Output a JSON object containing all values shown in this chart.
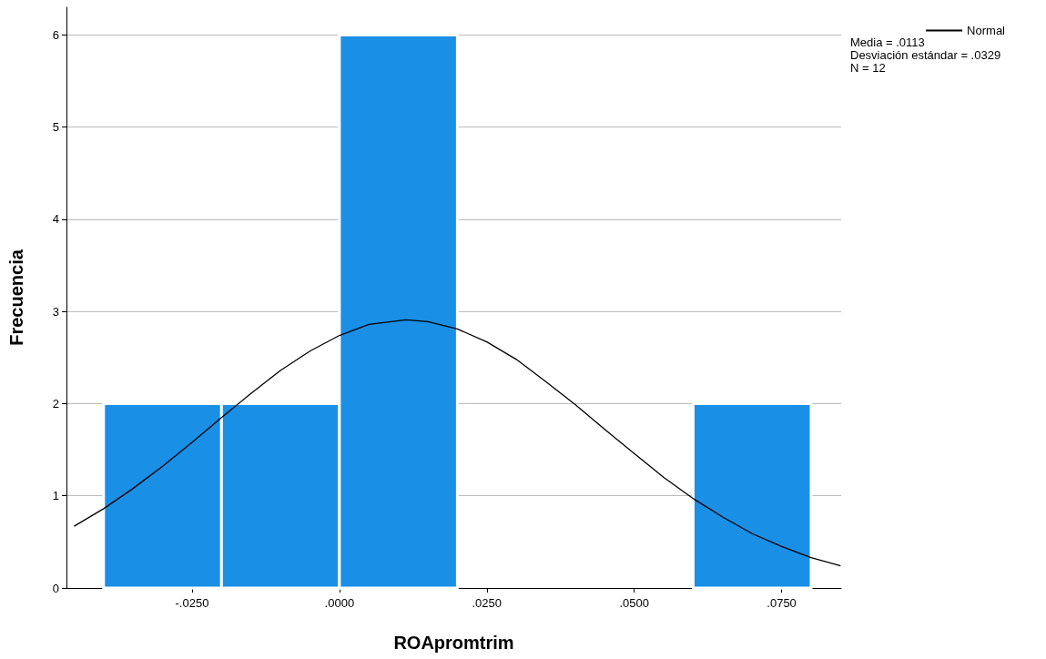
{
  "chart_data": {
    "type": "histogram",
    "xlabel": "ROApromtrim",
    "ylabel": "Frecuencia",
    "bins": [
      -0.04,
      -0.02,
      0.0,
      0.02,
      0.04,
      0.06,
      0.08
    ],
    "values": [
      2,
      2,
      6,
      0,
      0,
      2
    ],
    "color": "#1a8fe6",
    "series": [
      {
        "type": "line",
        "name": "Normal",
        "color": "#000000",
        "x": [
          -0.045,
          -0.04,
          -0.035,
          -0.03,
          -0.025,
          -0.02,
          -0.015,
          -0.01,
          -0.005,
          0.0,
          0.005,
          0.0113,
          0.015,
          0.02,
          0.025,
          0.03,
          0.035,
          0.04,
          0.045,
          0.05,
          0.055,
          0.06,
          0.065,
          0.07,
          0.075,
          0.08,
          0.085
        ],
        "values": [
          0.67,
          0.86,
          1.08,
          1.32,
          1.58,
          1.85,
          2.11,
          2.36,
          2.57,
          2.74,
          2.86,
          2.91,
          2.89,
          2.81,
          2.67,
          2.48,
          2.24,
          1.99,
          1.72,
          1.46,
          1.2,
          0.97,
          0.77,
          0.59,
          0.45,
          0.33,
          0.24
        ]
      }
    ],
    "xlim": [
      -0.0463,
      0.0851
    ],
    "xticks": [
      {
        "value": -0.025,
        "label": "-.0250"
      },
      {
        "value": 0.0,
        "label": ".0000"
      },
      {
        "value": 0.025,
        "label": ".0250"
      },
      {
        "value": 0.05,
        "label": ".0500"
      },
      {
        "value": 0.075,
        "label": ".0750"
      }
    ],
    "ylim": [
      0,
      6.3
    ],
    "yticks": [
      0,
      1,
      2,
      3,
      4,
      5,
      6
    ],
    "grid": "y",
    "legend": "top right",
    "annotations": [
      "Media = .0113",
      "Desviación estándar = .0329",
      "N = 12"
    ]
  }
}
